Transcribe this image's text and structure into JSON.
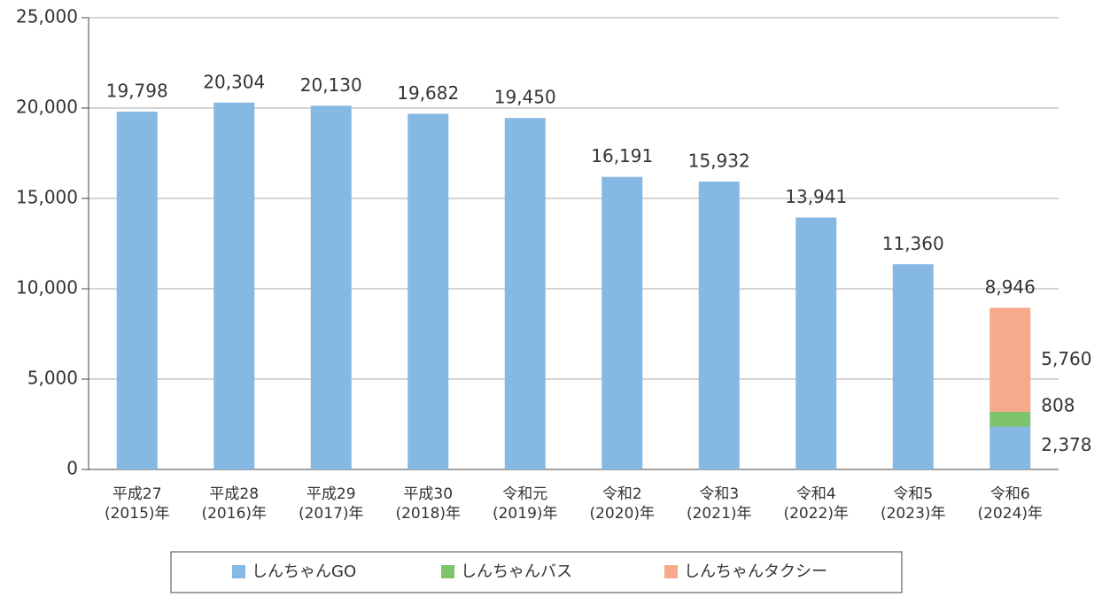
{
  "chart_data": {
    "type": "stacked_bar",
    "categories": [
      [
        "平成27",
        "(2015)年"
      ],
      [
        "平成28",
        "(2016)年"
      ],
      [
        "平成29",
        "(2017)年"
      ],
      [
        "平成30",
        "(2018)年"
      ],
      [
        "令和元",
        "(2019)年"
      ],
      [
        "令和2",
        "(2020)年"
      ],
      [
        "令和3",
        "(2021)年"
      ],
      [
        "令和4",
        "(2022)年"
      ],
      [
        "令和5",
        "(2023)年"
      ],
      [
        "令和6",
        "(2024)年"
      ]
    ],
    "series": [
      {
        "name": "しんちゃんGO",
        "color": "#85b8e2",
        "label_color": "#3a78b8",
        "values": [
          19798,
          20304,
          20130,
          19682,
          19450,
          16191,
          15932,
          13941,
          11360,
          2378
        ],
        "value_labels": [
          "19,798",
          "20,304",
          "20,130",
          "19,682",
          "19,450",
          "16,191",
          "15,932",
          "13,941",
          "11,360",
          "2,378"
        ]
      },
      {
        "name": "しんちゃんバス",
        "color": "#7dc36b",
        "label_color": "#6ea84a",
        "values": [
          null,
          null,
          null,
          null,
          null,
          null,
          null,
          null,
          null,
          808
        ],
        "value_labels": [
          null,
          null,
          null,
          null,
          null,
          null,
          null,
          null,
          null,
          "808"
        ]
      },
      {
        "name": "しんちゃんタクシー",
        "color": "#f6a98b",
        "label_color": "#f07c3a",
        "values": [
          null,
          null,
          null,
          null,
          null,
          null,
          null,
          null,
          null,
          5760
        ],
        "value_labels": [
          null,
          null,
          null,
          null,
          null,
          null,
          null,
          null,
          null,
          "5,760"
        ]
      }
    ],
    "total_labels": [
      null,
      null,
      null,
      null,
      null,
      null,
      null,
      null,
      null,
      "8,946"
    ],
    "ylim": [
      0,
      25000
    ],
    "yticks": [
      0,
      {
        "value": 5000,
        "label": "5,000"
      },
      {
        "value": 10000,
        "label": "10,000"
      },
      {
        "value": 15000,
        "label": "15,000"
      },
      {
        "value": 20000,
        "label": "20,000"
      },
      {
        "value": 25000,
        "label": "25,000"
      }
    ],
    "grid": true,
    "legend": "bottom"
  }
}
